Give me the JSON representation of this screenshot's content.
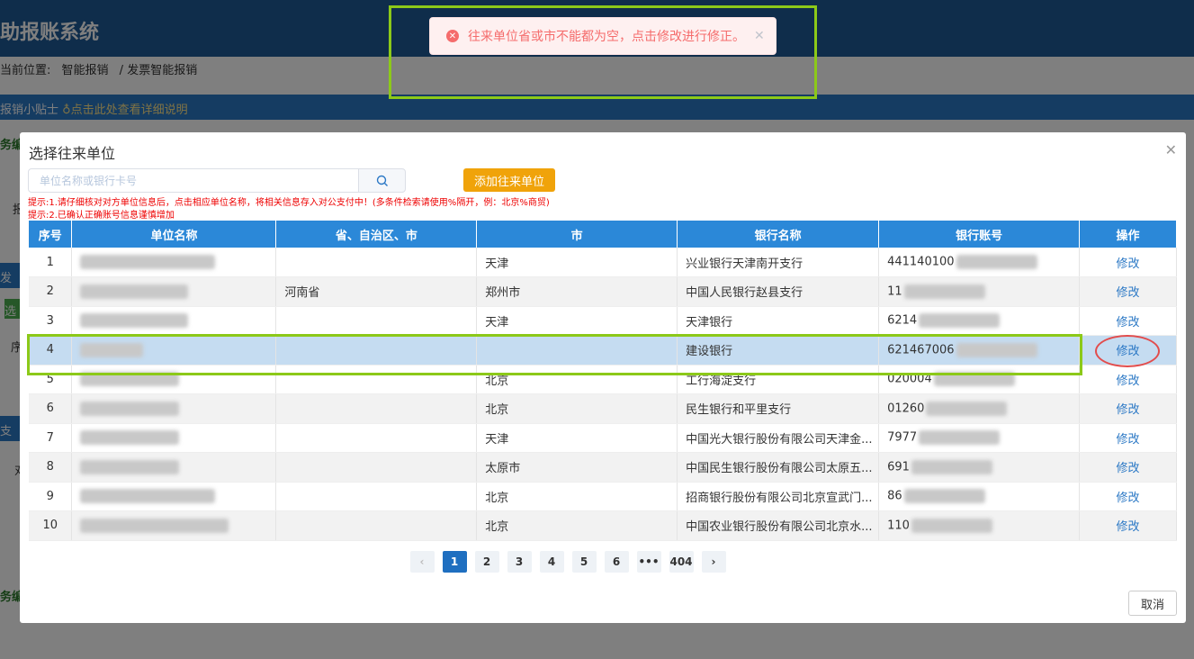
{
  "page": {
    "title": "助报账系统",
    "breadcrumb_label": "当前位置:",
    "breadcrumb": [
      "智能报销",
      "发票智能报销"
    ],
    "tip": "报销小贴士",
    "tip_link": "♁点击此处查看详细说明",
    "side_fragments": [
      "务编",
      "报",
      "发票",
      "选",
      "序",
      "支付",
      "对",
      "务编"
    ]
  },
  "toast": {
    "message": "往来单位省或市不能都为空，点击修改进行修正。",
    "icon": "error-circle-icon"
  },
  "modal": {
    "title": "选择往来单位",
    "search_placeholder": "单位名称或银行卡号",
    "add_label": "添加往来单位",
    "hint1": "提示:1.请仔细核对对方单位信息后，点击相应单位名称，将相关信息存入对公支付中！(多条件检索请使用%隔开，例：北京%商贸)",
    "hint2": "提示:2.已确认正确账号信息谨慎增加",
    "columns": [
      "序号",
      "单位名称",
      "省、自治区、市",
      "市",
      "银行名称",
      "银行账号",
      "操作"
    ],
    "rows": [
      {
        "idx": "1",
        "province": "",
        "city": "天津",
        "bank": "兴业银行天津南开支行",
        "account": "441140100",
        "op": "修改"
      },
      {
        "idx": "2",
        "province": "河南省",
        "city": "郑州市",
        "bank": "中国人民银行赵县支行",
        "account": "11",
        "op": "修改"
      },
      {
        "idx": "3",
        "province": "",
        "city": "天津",
        "bank": "天津银行",
        "account": "6214",
        "op": "修改"
      },
      {
        "idx": "4",
        "province": "",
        "city": "",
        "bank": "建设银行",
        "account": "621467006",
        "op": "修改"
      },
      {
        "idx": "5",
        "province": "",
        "city": "北京",
        "bank": "工行海淀支行",
        "account": "020004",
        "op": "修改"
      },
      {
        "idx": "6",
        "province": "",
        "city": "北京",
        "bank": "民生银行和平里支行",
        "account": "01260",
        "op": "修改"
      },
      {
        "idx": "7",
        "province": "",
        "city": "天津",
        "bank": "中国光大银行股份有限公司天津金...",
        "account": "7977",
        "op": "修改"
      },
      {
        "idx": "8",
        "province": "",
        "city": "太原市",
        "bank": "中国民生银行股份有限公司太原五...",
        "account": "691",
        "op": "修改"
      },
      {
        "idx": "9",
        "province": "",
        "city": "北京",
        "bank": "招商银行股份有限公司北京宣武门...",
        "account": "86",
        "op": "修改"
      },
      {
        "idx": "10",
        "province": "",
        "city": "北京",
        "bank": "中国农业银行股份有限公司北京水...",
        "account": "110",
        "op": "修改"
      }
    ],
    "selected_row": 4,
    "pager": {
      "prev": "‹",
      "pages": [
        "1",
        "2",
        "3",
        "4",
        "5",
        "6",
        "•••",
        "404"
      ],
      "current": "1",
      "next": "›"
    },
    "cancel_label": "取消"
  },
  "colors": {
    "header": "#2b88d8",
    "accent": "#f0a30a",
    "error": "#f56c6c",
    "highlight": "#8cc919"
  }
}
